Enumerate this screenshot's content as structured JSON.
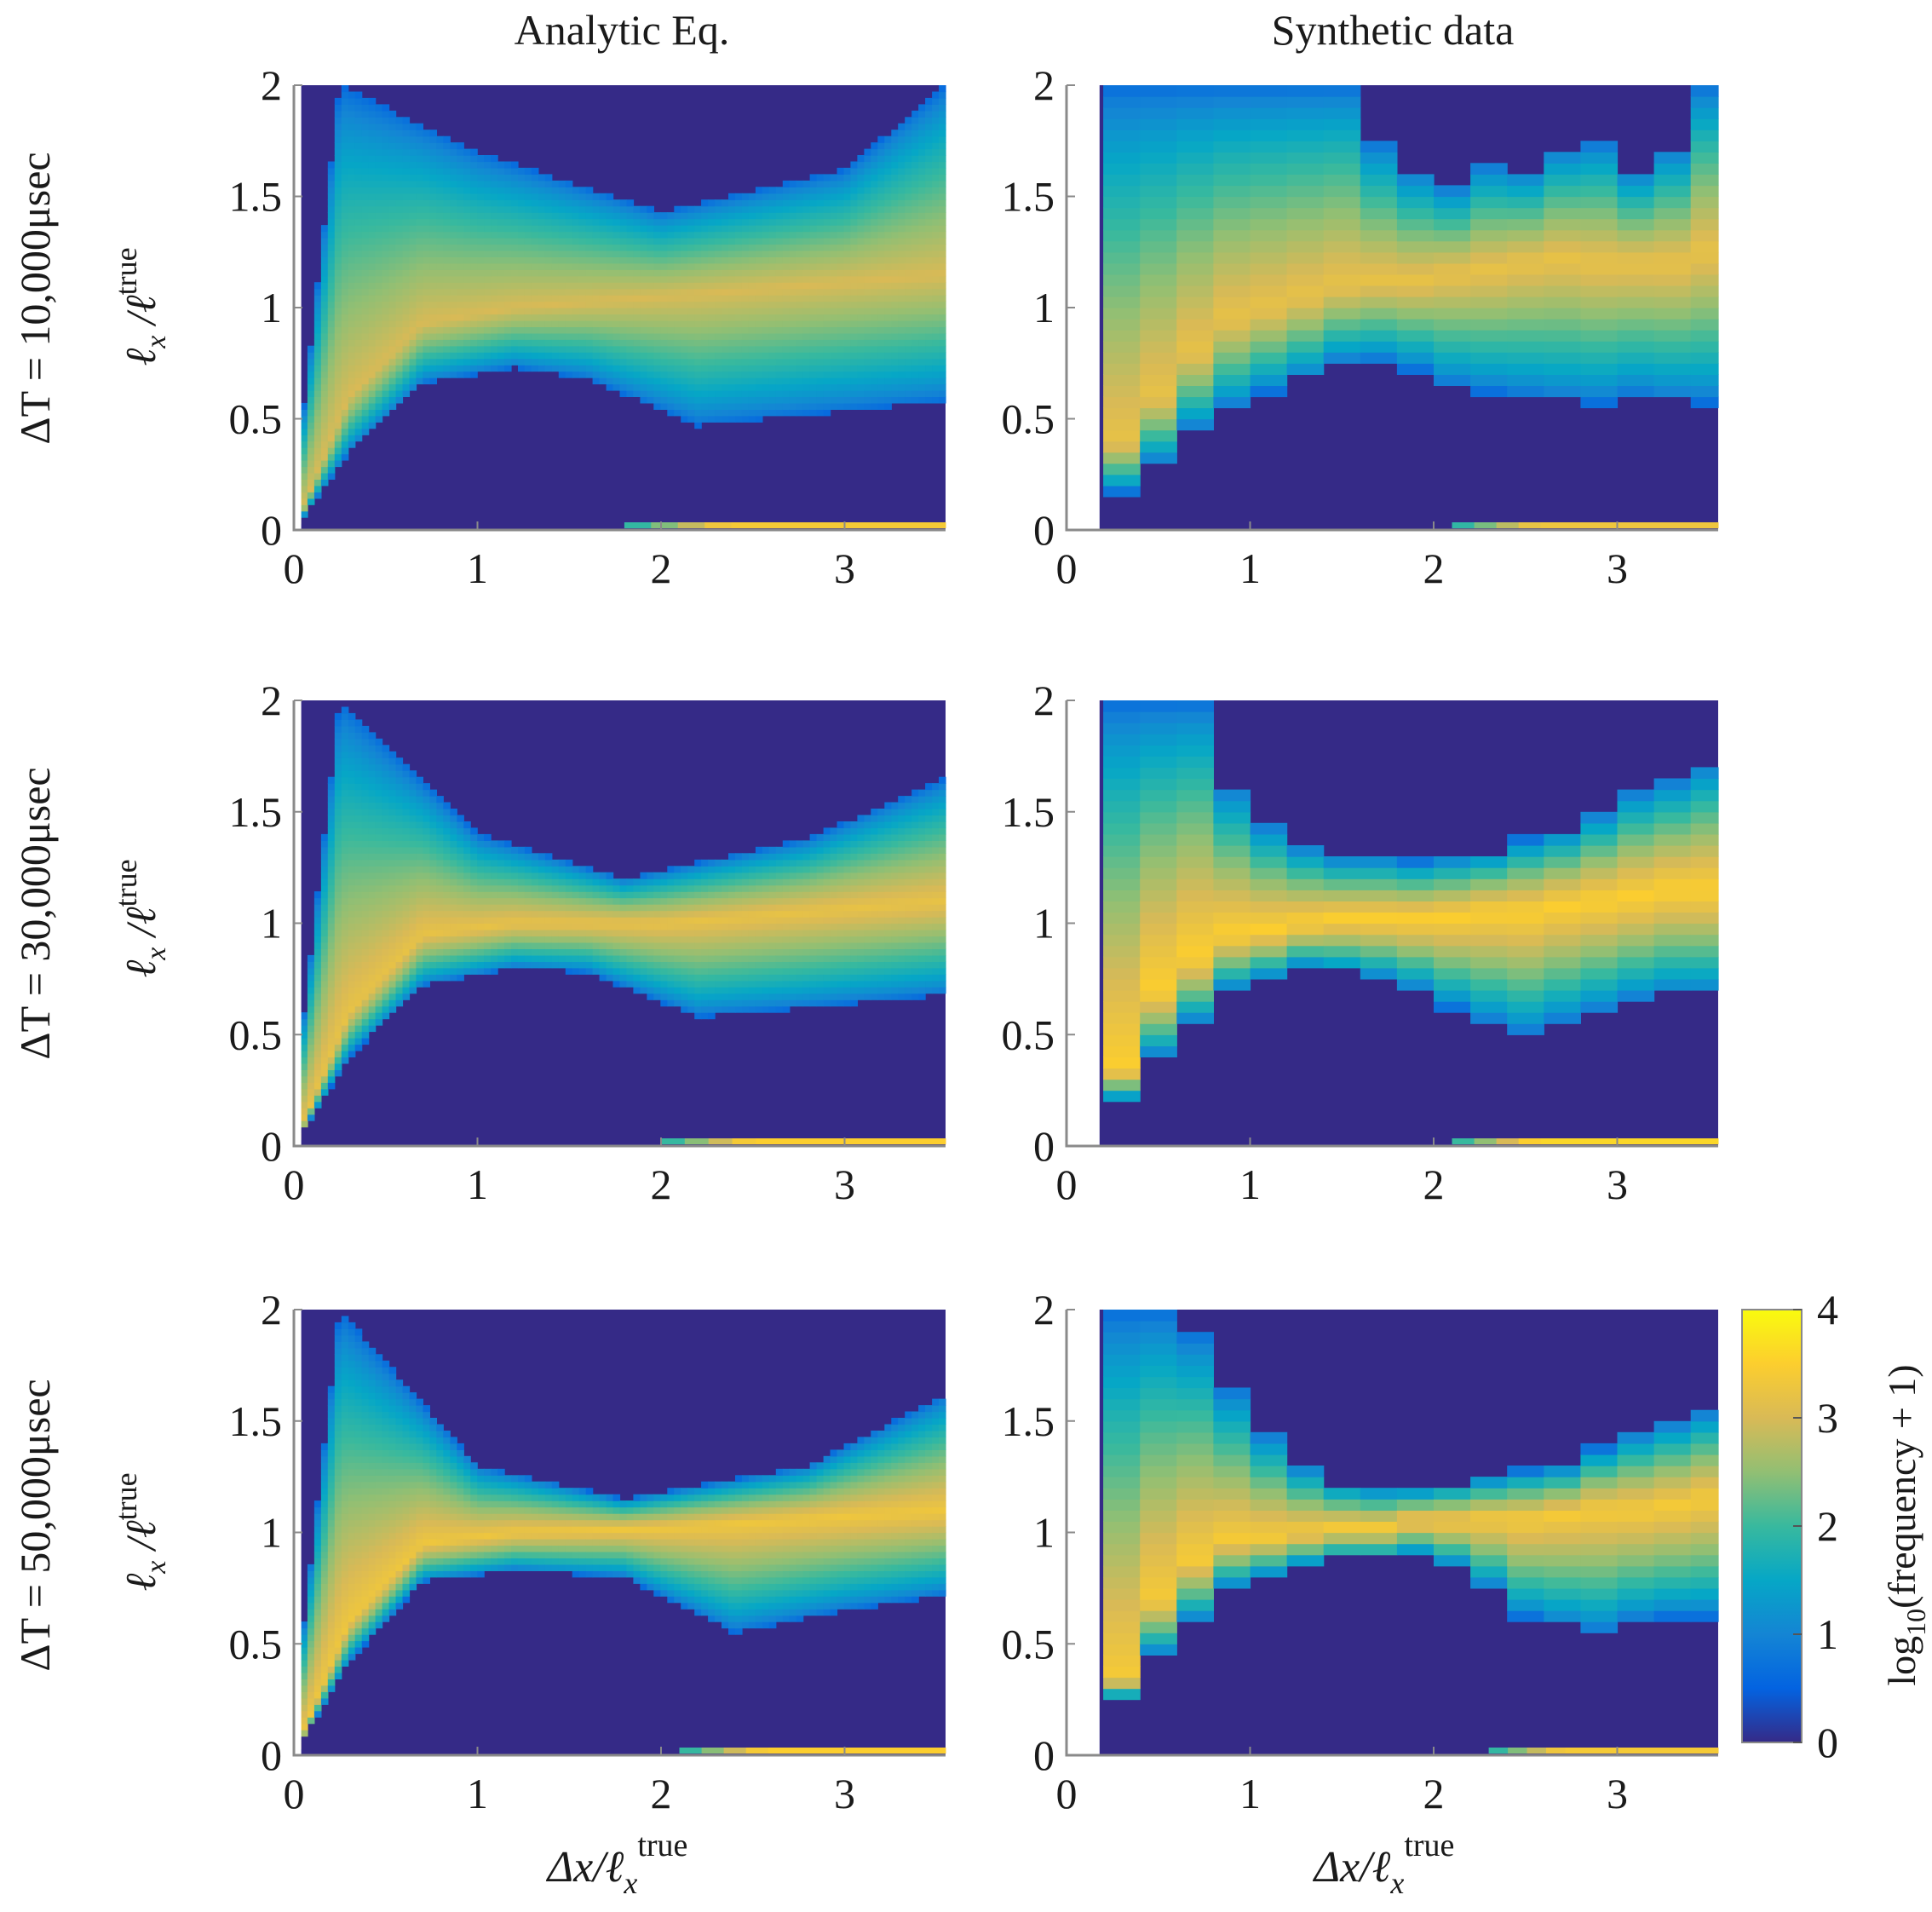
{
  "chart_data": {
    "type": "heatmap",
    "title": "",
    "column_titles": [
      "Analytic Eq.",
      "Synthetic data"
    ],
    "row_labels": [
      "ΔT = 10,000μsec",
      "ΔT = 30,000μsec",
      "ΔT = 50,000μsec"
    ],
    "xlabel": "Δx/ℓx true",
    "xlabel_main": "Δx/ℓ",
    "xlabel_sub": "x",
    "xlabel_sup": "true",
    "ylabel": "ℓx /ℓx true",
    "ylabel_main": "ℓ",
    "ylabel_sub": "x",
    "ylabel_mid": " /ℓ",
    "ylabel_sup": "true",
    "xlim": [
      0,
      3.55
    ],
    "ylim": [
      0,
      2
    ],
    "x_ticks": [
      "0",
      "1",
      "2",
      "3"
    ],
    "x_tick_values": [
      0,
      1,
      2,
      3
    ],
    "y_ticks": [
      "0",
      "0.5",
      "1",
      "1.5",
      "2"
    ],
    "y_tick_values": [
      0,
      0.5,
      1,
      1.5,
      2
    ],
    "colorbar": {
      "label": "log10(frequency + 1)",
      "label_main": "log",
      "label_sub": "10",
      "label_rest": "(frequency + 1)",
      "range": [
        0,
        4
      ],
      "ticks": [
        "0",
        "1",
        "2",
        "3",
        "4"
      ],
      "tick_values": [
        0,
        1,
        2,
        3,
        4
      ],
      "colormap": "parula"
    },
    "panels": [
      {
        "id": "analytic-10000",
        "row": 0,
        "col": 0,
        "kind": "analytic",
        "deltaT_us": 10000,
        "band_center": [
          [
            0.0,
            0.0
          ],
          [
            0.3,
            0.6
          ],
          [
            0.7,
            0.93
          ],
          [
            1.2,
            1.0
          ],
          [
            2.0,
            1.05
          ],
          [
            3.55,
            1.15
          ]
        ],
        "band_lower": [
          [
            0.0,
            0.0
          ],
          [
            0.3,
            0.35
          ],
          [
            0.7,
            0.66
          ],
          [
            1.2,
            0.73
          ],
          [
            1.6,
            0.68
          ],
          [
            2.2,
            0.47
          ],
          [
            2.8,
            0.52
          ],
          [
            3.55,
            0.58
          ]
        ],
        "band_upper": [
          [
            0.0,
            0.15
          ],
          [
            0.25,
            2.0
          ],
          [
            1.0,
            1.7
          ],
          [
            2.0,
            1.43
          ],
          [
            3.0,
            1.62
          ],
          [
            3.55,
            2.0
          ]
        ],
        "peak_level": 3.0,
        "bottom_strip": {
          "x_from": 1.8,
          "level": 3.4
        }
      },
      {
        "id": "synthetic-10000",
        "row": 0,
        "col": 1,
        "kind": "synthetic",
        "deltaT_us": 10000,
        "blank_x_until": 0.18,
        "bin_width": 0.2,
        "bin_centers": [
          0.3,
          0.5,
          0.7,
          0.9,
          1.1,
          1.3,
          1.5,
          1.7,
          1.9,
          2.1,
          2.3,
          2.5,
          2.7,
          2.9,
          3.1,
          3.3,
          3.5
        ],
        "lower": [
          0.17,
          0.3,
          0.45,
          0.55,
          0.62,
          0.68,
          0.75,
          0.76,
          0.72,
          0.65,
          0.62,
          0.6,
          0.58,
          0.57,
          0.6,
          0.58,
          0.57
        ],
        "center": [
          0.4,
          0.6,
          0.8,
          0.95,
          1.0,
          1.05,
          1.1,
          1.12,
          1.12,
          1.15,
          1.17,
          1.2,
          1.22,
          1.2,
          1.2,
          1.2,
          1.25
        ],
        "upper": [
          2.0,
          2.0,
          2.0,
          2.0,
          2.0,
          2.0,
          2.0,
          1.75,
          1.62,
          1.55,
          1.65,
          1.62,
          1.72,
          1.75,
          1.62,
          1.72,
          2.0
        ],
        "peak_level": 3.2,
        "bottom_strip": {
          "x_from": 2.1,
          "level": 3.3
        }
      },
      {
        "id": "analytic-30000",
        "row": 1,
        "col": 0,
        "kind": "analytic",
        "deltaT_us": 30000,
        "band_center": [
          [
            0.0,
            0.0
          ],
          [
            0.3,
            0.6
          ],
          [
            0.7,
            0.95
          ],
          [
            1.2,
            1.0
          ],
          [
            2.0,
            1.0
          ],
          [
            3.55,
            1.1
          ]
        ],
        "band_lower": [
          [
            0.0,
            0.0
          ],
          [
            0.3,
            0.4
          ],
          [
            0.7,
            0.72
          ],
          [
            1.2,
            0.8
          ],
          [
            1.6,
            0.78
          ],
          [
            2.2,
            0.58
          ],
          [
            2.8,
            0.62
          ],
          [
            3.55,
            0.68
          ]
        ],
        "band_upper": [
          [
            0.0,
            0.2
          ],
          [
            0.25,
            2.0
          ],
          [
            1.0,
            1.4
          ],
          [
            1.8,
            1.2
          ],
          [
            2.8,
            1.38
          ],
          [
            3.55,
            1.65
          ]
        ],
        "peak_level": 3.2,
        "bottom_strip": {
          "x_from": 2.0,
          "level": 3.5
        }
      },
      {
        "id": "synthetic-30000",
        "row": 1,
        "col": 1,
        "kind": "synthetic",
        "deltaT_us": 30000,
        "blank_x_until": 0.18,
        "bin_width": 0.2,
        "bin_centers": [
          0.3,
          0.5,
          0.7,
          0.9,
          1.1,
          1.3,
          1.5,
          1.7,
          1.9,
          2.1,
          2.3,
          2.5,
          2.7,
          2.9,
          3.1,
          3.3,
          3.5
        ],
        "lower": [
          0.2,
          0.4,
          0.55,
          0.7,
          0.75,
          0.8,
          0.78,
          0.75,
          0.7,
          0.62,
          0.55,
          0.5,
          0.55,
          0.6,
          0.65,
          0.68,
          0.68
        ],
        "center": [
          0.35,
          0.7,
          0.85,
          0.95,
          0.97,
          1.0,
          1.02,
          1.02,
          1.02,
          1.03,
          1.05,
          1.05,
          1.08,
          1.1,
          1.12,
          1.15,
          1.15
        ],
        "upper": [
          2.0,
          2.0,
          2.0,
          1.62,
          1.45,
          1.35,
          1.3,
          1.3,
          1.28,
          1.3,
          1.32,
          1.38,
          1.42,
          1.5,
          1.6,
          1.65,
          1.72
        ],
        "peak_level": 3.5,
        "bottom_strip": {
          "x_from": 2.1,
          "level": 3.6
        }
      },
      {
        "id": "analytic-50000",
        "row": 2,
        "col": 0,
        "kind": "analytic",
        "deltaT_us": 50000,
        "band_center": [
          [
            0.0,
            0.0
          ],
          [
            0.3,
            0.6
          ],
          [
            0.7,
            0.95
          ],
          [
            1.2,
            1.0
          ],
          [
            2.0,
            1.02
          ],
          [
            3.55,
            1.1
          ]
        ],
        "band_lower": [
          [
            0.0,
            0.0
          ],
          [
            0.3,
            0.42
          ],
          [
            0.7,
            0.78
          ],
          [
            1.2,
            0.83
          ],
          [
            1.8,
            0.8
          ],
          [
            2.4,
            0.55
          ],
          [
            3.0,
            0.65
          ],
          [
            3.55,
            0.72
          ]
        ],
        "band_upper": [
          [
            0.0,
            0.2
          ],
          [
            0.25,
            2.0
          ],
          [
            1.0,
            1.3
          ],
          [
            1.8,
            1.15
          ],
          [
            2.8,
            1.3
          ],
          [
            3.55,
            1.62
          ]
        ],
        "peak_level": 3.3,
        "bottom_strip": {
          "x_from": 2.1,
          "level": 3.5
        }
      },
      {
        "id": "synthetic-50000",
        "row": 2,
        "col": 1,
        "kind": "synthetic",
        "deltaT_us": 50000,
        "blank_x_until": 0.18,
        "bin_width": 0.2,
        "bin_centers": [
          0.3,
          0.5,
          0.7,
          0.9,
          1.1,
          1.3,
          1.5,
          1.7,
          1.9,
          2.1,
          2.3,
          2.5,
          2.7,
          2.9,
          3.1,
          3.3,
          3.5
        ],
        "lower": [
          0.25,
          0.45,
          0.6,
          0.75,
          0.8,
          0.85,
          0.88,
          0.88,
          0.9,
          0.85,
          0.75,
          0.62,
          0.58,
          0.55,
          0.6,
          0.62,
          0.62
        ],
        "center": [
          0.35,
          0.7,
          0.88,
          0.97,
          0.98,
          1.0,
          1.02,
          1.02,
          1.05,
          1.05,
          1.06,
          1.06,
          1.08,
          1.1,
          1.1,
          1.12,
          1.15
        ],
        "upper": [
          2.0,
          2.0,
          1.9,
          1.65,
          1.45,
          1.3,
          1.22,
          1.2,
          1.2,
          1.22,
          1.25,
          1.28,
          1.3,
          1.38,
          1.45,
          1.5,
          1.55
        ],
        "peak_level": 3.4,
        "bottom_strip": {
          "x_from": 2.3,
          "level": 3.4
        }
      }
    ]
  }
}
